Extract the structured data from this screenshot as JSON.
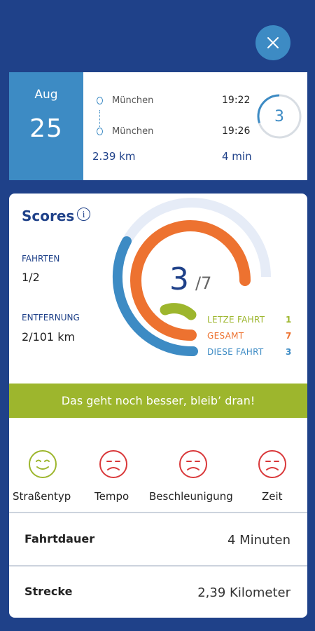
{
  "trip": {
    "month": "Aug",
    "day": "25",
    "from_city": "München",
    "from_time": "19:22",
    "to_city": "München",
    "to_time": "19:26",
    "distance": "2.39 km",
    "duration": "4 min",
    "score": "3",
    "score_fraction": 0.3
  },
  "scores": {
    "title": "Scores",
    "info_icon": "i",
    "fahrten_label": "FAHRTEN",
    "fahrten_value": "1/2",
    "entfernung_label": "ENTFERNUNG",
    "entfernung_value": "2/101 km",
    "score": "3",
    "score_total": "/7",
    "legend": [
      {
        "label": "LETZE FAHRT",
        "value": "1",
        "color": "#9db62d"
      },
      {
        "label": "GESAMT",
        "value": "7",
        "color": "#ed7230"
      },
      {
        "label": "DIESE FAHRT",
        "value": "3",
        "color": "#3d8bc4"
      }
    ],
    "banner": "Das geht noch besser, bleib’ dran!"
  },
  "metrics": [
    {
      "label": "Straßentyp",
      "icon": "smile-face-icon",
      "color": "#9db62d"
    },
    {
      "label": "Tempo",
      "icon": "sad-face-icon",
      "color": "#d9383a"
    },
    {
      "label": "Beschleunigung",
      "icon": "sad-face-icon",
      "color": "#d9383a"
    },
    {
      "label": "Zeit",
      "icon": "sad-face-icon",
      "color": "#d9383a"
    }
  ],
  "details": [
    {
      "label": "Fahrtdauer",
      "value": "4 Minuten"
    },
    {
      "label": "Strecke",
      "value": "2,39 Kilometer"
    }
  ],
  "colors": {
    "background": "#1f4189",
    "accent_blue": "#3d8bc4",
    "orange": "#ed7230",
    "green": "#9db62d",
    "red": "#d9383a",
    "ring_track": "#e6ecf7"
  }
}
